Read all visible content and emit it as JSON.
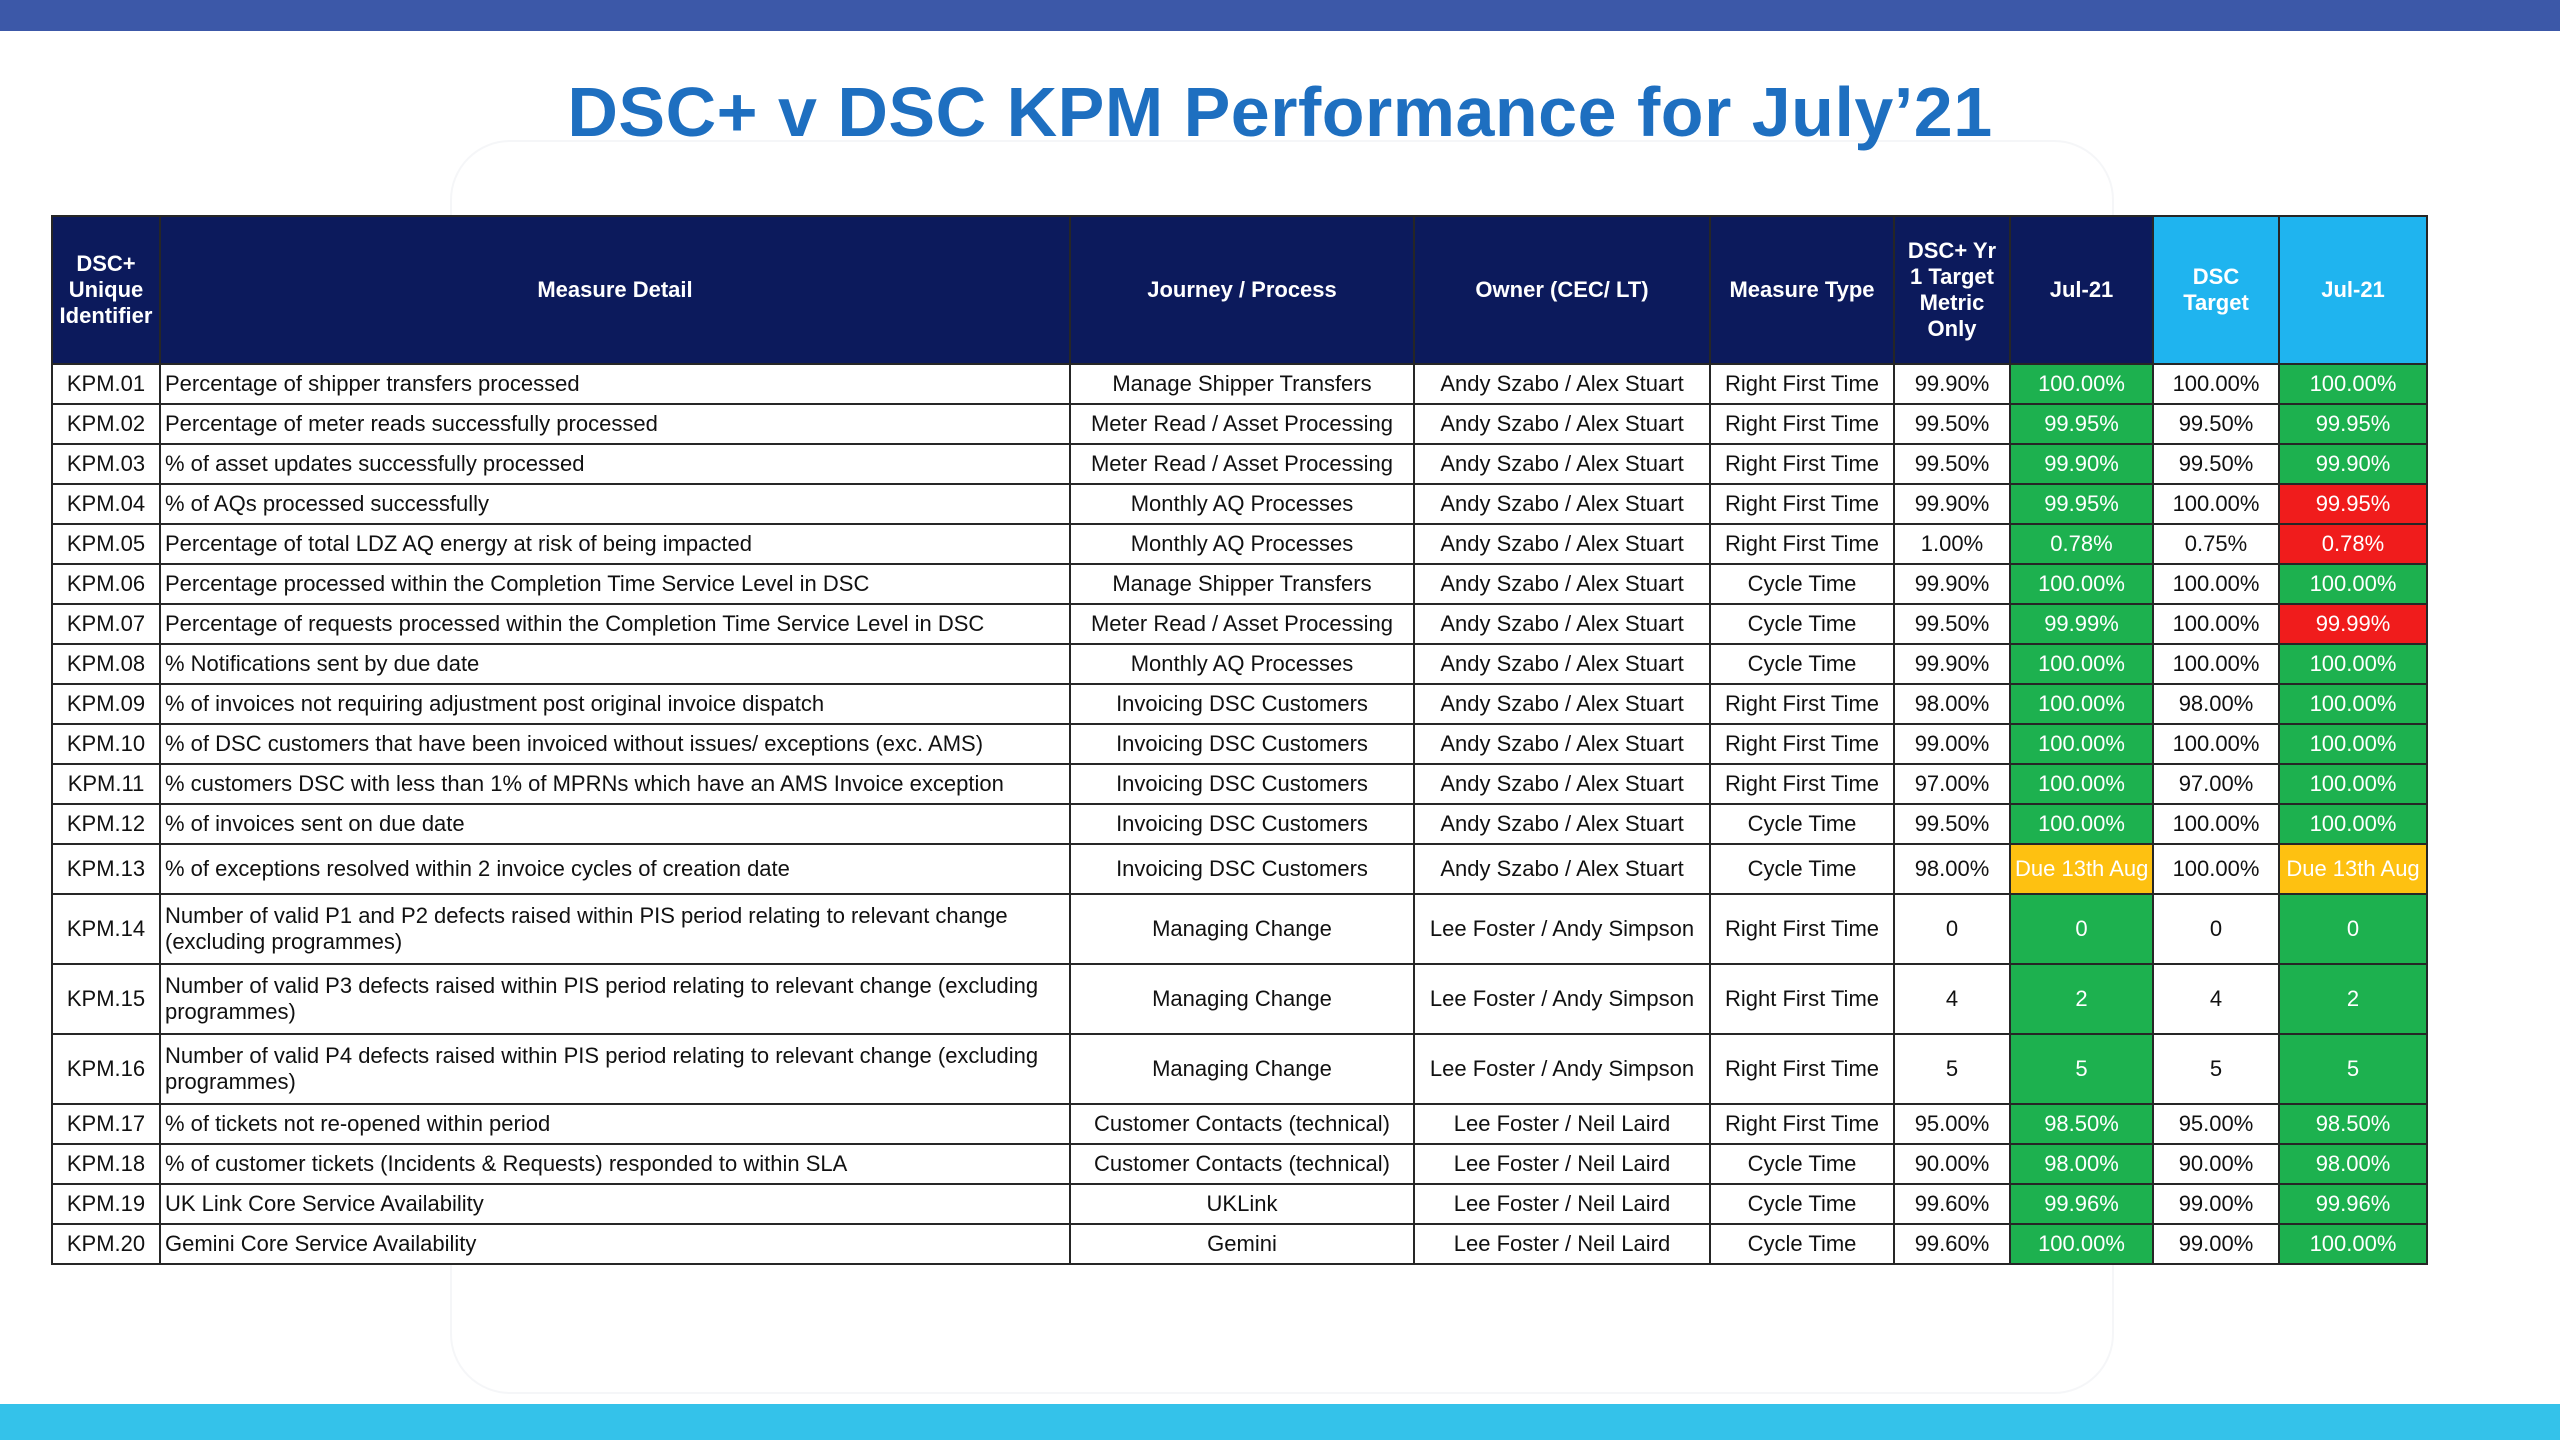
{
  "title": "DSC+ v DSC KPM Performance for July’21",
  "colors": {
    "header_navy": "#0c1a5c",
    "header_cyan": "#1fb4ef",
    "status_green": "#1db14f",
    "status_red": "#f01c1c",
    "status_amber": "#fec111",
    "title_blue": "#1e6fc0",
    "top_bar": "#3c58a8",
    "bottom_bar": "#34c2ea"
  },
  "table": {
    "headers": [
      "DSC+ Unique Identifier",
      "Measure Detail",
      "Journey / Process",
      "Owner (CEC/ LT)",
      "Measure Type",
      "DSC+ Yr 1 Target Metric Only",
      "Jul-21",
      "DSC Target",
      "Jul-21"
    ],
    "rows": [
      {
        "id": "KPM.01",
        "detail": "Percentage of shipper transfers processed",
        "journey": "Manage Shipper Transfers",
        "owner": "Andy Szabo / Alex Stuart",
        "type": "Right First Time",
        "dscplus_target": "99.90%",
        "dscplus_jul": "100.00%",
        "dscplus_status": "green",
        "dsc_target": "100.00%",
        "dsc_jul": "100.00%",
        "dsc_status": "green"
      },
      {
        "id": "KPM.02",
        "detail": "Percentage of meter reads successfully processed",
        "journey": "Meter Read / Asset Processing",
        "owner": "Andy Szabo / Alex Stuart",
        "type": "Right First Time",
        "dscplus_target": "99.50%",
        "dscplus_jul": "99.95%",
        "dscplus_status": "green",
        "dsc_target": "99.50%",
        "dsc_jul": "99.95%",
        "dsc_status": "green"
      },
      {
        "id": "KPM.03",
        "detail": "% of asset updates successfully processed",
        "journey": "Meter Read / Asset Processing",
        "owner": "Andy Szabo / Alex Stuart",
        "type": "Right First Time",
        "dscplus_target": "99.50%",
        "dscplus_jul": "99.90%",
        "dscplus_status": "green",
        "dsc_target": "99.50%",
        "dsc_jul": "99.90%",
        "dsc_status": "green"
      },
      {
        "id": "KPM.04",
        "detail": "% of AQs processed successfully",
        "journey": "Monthly AQ Processes",
        "owner": "Andy Szabo / Alex Stuart",
        "type": "Right First Time",
        "dscplus_target": "99.90%",
        "dscplus_jul": "99.95%",
        "dscplus_status": "green",
        "dsc_target": "100.00%",
        "dsc_jul": "99.95%",
        "dsc_status": "red"
      },
      {
        "id": "KPM.05",
        "detail": "Percentage of total LDZ AQ energy at risk of being impacted",
        "journey": "Monthly AQ Processes",
        "owner": "Andy Szabo / Alex Stuart",
        "type": "Right First Time",
        "dscplus_target": "1.00%",
        "dscplus_jul": "0.78%",
        "dscplus_status": "green",
        "dsc_target": "0.75%",
        "dsc_jul": "0.78%",
        "dsc_status": "red"
      },
      {
        "id": "KPM.06",
        "detail": "Percentage processed within the Completion Time Service Level in DSC",
        "journey": "Manage Shipper Transfers",
        "owner": "Andy Szabo / Alex Stuart",
        "type": "Cycle Time",
        "dscplus_target": "99.90%",
        "dscplus_jul": "100.00%",
        "dscplus_status": "green",
        "dsc_target": "100.00%",
        "dsc_jul": "100.00%",
        "dsc_status": "green"
      },
      {
        "id": "KPM.07",
        "detail": "Percentage of requests processed within the Completion Time Service Level in DSC",
        "journey": "Meter Read / Asset Processing",
        "owner": "Andy Szabo / Alex Stuart",
        "type": "Cycle Time",
        "dscplus_target": "99.50%",
        "dscplus_jul": "99.99%",
        "dscplus_status": "green",
        "dsc_target": "100.00%",
        "dsc_jul": "99.99%",
        "dsc_status": "red"
      },
      {
        "id": "KPM.08",
        "detail": "% Notifications sent by due date",
        "journey": "Monthly AQ Processes",
        "owner": "Andy Szabo / Alex Stuart",
        "type": "Cycle Time",
        "dscplus_target": "99.90%",
        "dscplus_jul": "100.00%",
        "dscplus_status": "green",
        "dsc_target": "100.00%",
        "dsc_jul": "100.00%",
        "dsc_status": "green"
      },
      {
        "id": "KPM.09",
        "detail": "% of invoices not requiring adjustment post original invoice dispatch",
        "journey": "Invoicing DSC Customers",
        "owner": "Andy Szabo / Alex Stuart",
        "type": "Right First Time",
        "dscplus_target": "98.00%",
        "dscplus_jul": "100.00%",
        "dscplus_status": "green",
        "dsc_target": "98.00%",
        "dsc_jul": "100.00%",
        "dsc_status": "green"
      },
      {
        "id": "KPM.10",
        "detail": "% of DSC customers that have been invoiced without issues/ exceptions (exc. AMS)",
        "journey": "Invoicing DSC Customers",
        "owner": "Andy Szabo / Alex Stuart",
        "type": "Right First Time",
        "dscplus_target": "99.00%",
        "dscplus_jul": "100.00%",
        "dscplus_status": "green",
        "dsc_target": "100.00%",
        "dsc_jul": "100.00%",
        "dsc_status": "green"
      },
      {
        "id": "KPM.11",
        "detail": "% customers DSC with less than 1% of MPRNs which have an AMS Invoice exception",
        "journey": "Invoicing DSC Customers",
        "owner": "Andy Szabo / Alex Stuart",
        "type": "Right First Time",
        "dscplus_target": "97.00%",
        "dscplus_jul": "100.00%",
        "dscplus_status": "green",
        "dsc_target": "97.00%",
        "dsc_jul": "100.00%",
        "dsc_status": "green"
      },
      {
        "id": "KPM.12",
        "detail": "% of invoices sent on due date",
        "journey": "Invoicing DSC Customers",
        "owner": "Andy Szabo / Alex Stuart",
        "type": "Cycle Time",
        "dscplus_target": "99.50%",
        "dscplus_jul": "100.00%",
        "dscplus_status": "green",
        "dsc_target": "100.00%",
        "dsc_jul": "100.00%",
        "dsc_status": "green"
      },
      {
        "id": "KPM.13",
        "detail": "% of exceptions resolved within 2 invoice cycles of creation date",
        "journey": "Invoicing DSC Customers",
        "owner": "Andy Szabo / Alex Stuart",
        "type": "Cycle Time",
        "dscplus_target": "98.00%",
        "dscplus_jul": "Due 13th Aug",
        "dscplus_status": "amber",
        "dsc_target": "100.00%",
        "dsc_jul": "Due 13th Aug",
        "dsc_status": "amber"
      },
      {
        "id": "KPM.14",
        "detail": "Number of valid P1 and P2 defects raised within PIS period relating to relevant change (excluding programmes)",
        "journey": "Managing Change",
        "owner": "Lee Foster / Andy Simpson",
        "type": "Right First Time",
        "dscplus_target": "0",
        "dscplus_jul": "0",
        "dscplus_status": "green",
        "dsc_target": "0",
        "dsc_jul": "0",
        "dsc_status": "green"
      },
      {
        "id": "KPM.15",
        "detail": "Number of valid P3 defects raised within PIS period relating to relevant change (excluding programmes)",
        "journey": "Managing Change",
        "owner": "Lee Foster / Andy Simpson",
        "type": "Right First Time",
        "dscplus_target": "4",
        "dscplus_jul": "2",
        "dscplus_status": "green",
        "dsc_target": "4",
        "dsc_jul": "2",
        "dsc_status": "green"
      },
      {
        "id": "KPM.16",
        "detail": "Number of valid P4 defects raised within PIS period relating to relevant change (excluding programmes)",
        "journey": "Managing Change",
        "owner": "Lee Foster / Andy Simpson",
        "type": "Right First Time",
        "dscplus_target": "5",
        "dscplus_jul": "5",
        "dscplus_status": "green",
        "dsc_target": "5",
        "dsc_jul": "5",
        "dsc_status": "green"
      },
      {
        "id": "KPM.17",
        "detail": "% of tickets not re-opened within period",
        "journey": "Customer Contacts (technical)",
        "owner": "Lee Foster / Neil Laird",
        "type": "Right First Time",
        "dscplus_target": "95.00%",
        "dscplus_jul": "98.50%",
        "dscplus_status": "green",
        "dsc_target": "95.00%",
        "dsc_jul": "98.50%",
        "dsc_status": "green"
      },
      {
        "id": "KPM.18",
        "detail": "% of customer tickets (Incidents & Requests) responded to within SLA",
        "journey": "Customer Contacts (technical)",
        "owner": "Lee Foster / Neil Laird",
        "type": "Cycle Time",
        "dscplus_target": "90.00%",
        "dscplus_jul": "98.00%",
        "dscplus_status": "green",
        "dsc_target": "90.00%",
        "dsc_jul": "98.00%",
        "dsc_status": "green"
      },
      {
        "id": "KPM.19",
        "detail": "UK Link Core Service Availability",
        "journey": "UKLink",
        "owner": "Lee Foster / Neil Laird",
        "type": "Cycle Time",
        "dscplus_target": "99.60%",
        "dscplus_jul": "99.96%",
        "dscplus_status": "green",
        "dsc_target": "99.00%",
        "dsc_jul": "99.96%",
        "dsc_status": "green"
      },
      {
        "id": "KPM.20",
        "detail": "Gemini Core Service Availability",
        "journey": "Gemini",
        "owner": "Lee Foster / Neil Laird",
        "type": "Cycle Time",
        "dscplus_target": "99.60%",
        "dscplus_jul": "100.00%",
        "dscplus_status": "green",
        "dsc_target": "99.00%",
        "dsc_jul": "100.00%",
        "dsc_status": "green"
      }
    ]
  }
}
